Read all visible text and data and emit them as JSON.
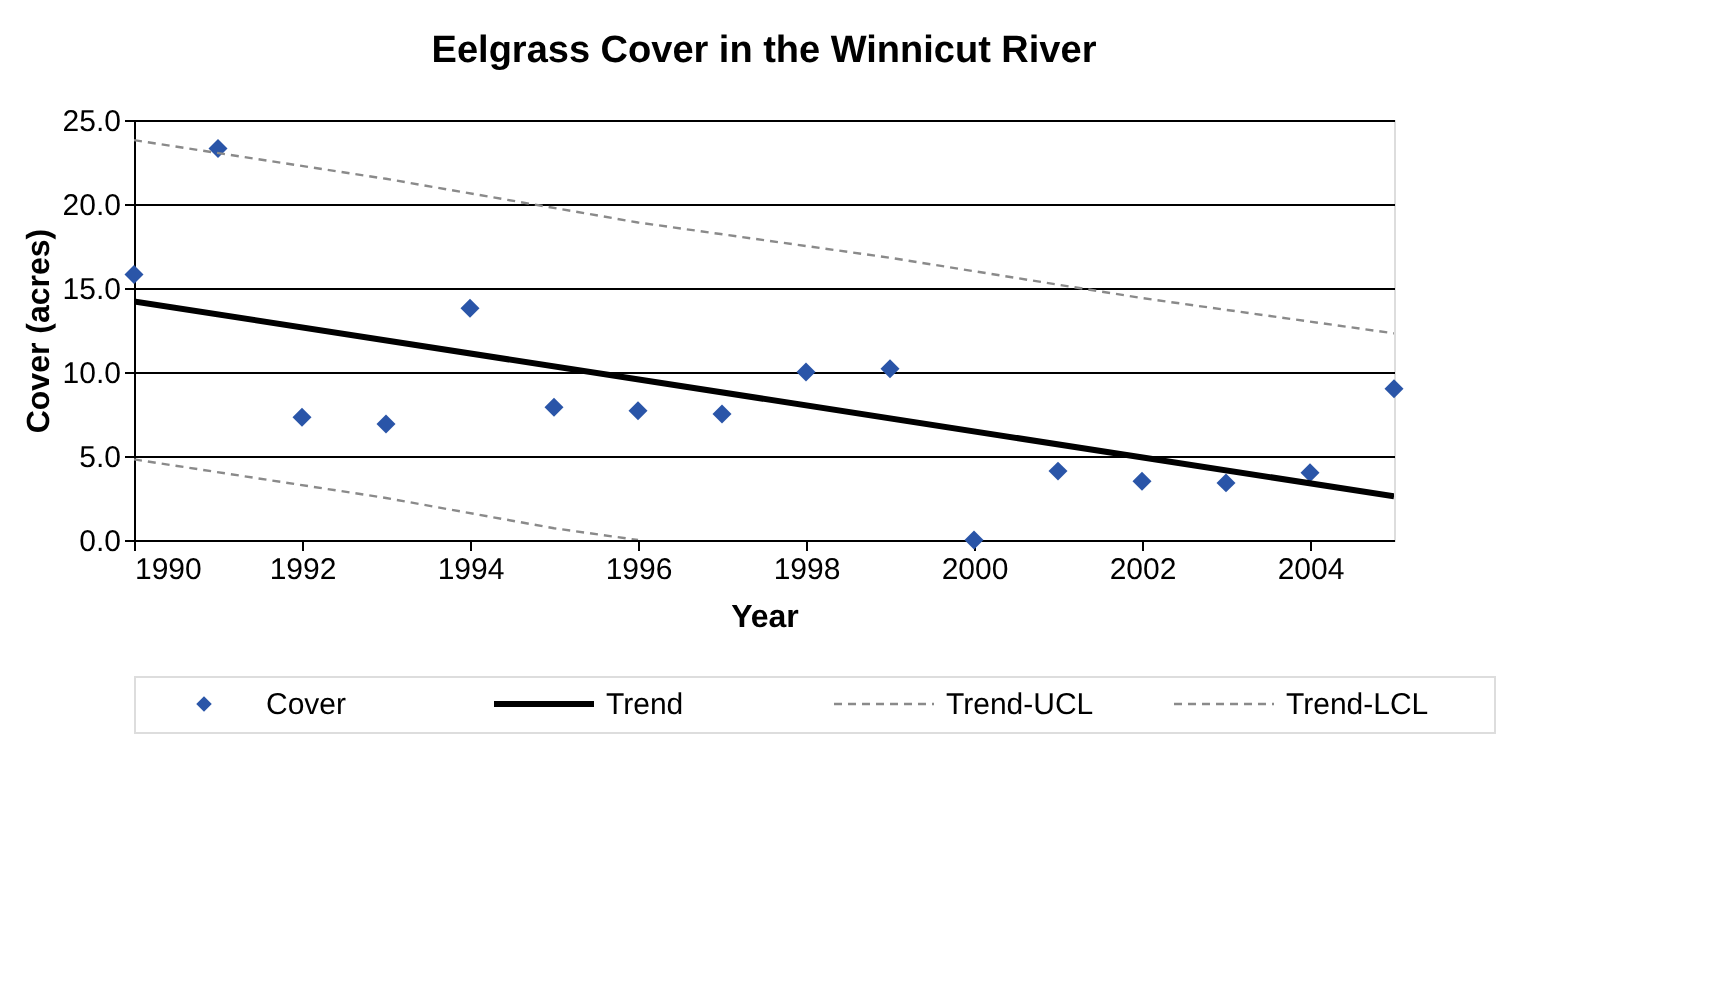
{
  "chart_data": {
    "type": "scatter",
    "title": "Eelgrass Cover in the Winnicut River",
    "xlabel": "Year",
    "ylabel": "Cover (acres)",
    "xlim": [
      1990,
      2005
    ],
    "xticks": [
      1990,
      1992,
      1994,
      1996,
      1998,
      2000,
      2002,
      2004
    ],
    "ylim": [
      0,
      25
    ],
    "yticks": [
      {
        "value": 0,
        "label": "0.0"
      },
      {
        "value": 5,
        "label": "5.0"
      },
      {
        "value": 10,
        "label": "10.0"
      },
      {
        "value": 15,
        "label": "15.0"
      },
      {
        "value": 20,
        "label": "20.0"
      },
      {
        "value": 25,
        "label": "25.0"
      }
    ],
    "grid": "y",
    "legend": "bottom",
    "series": [
      {
        "name": "Cover",
        "marker": "diamond",
        "color": "#2a55a8",
        "x": [
          1990,
          1991,
          1992,
          1993,
          1994,
          1995,
          1996,
          1997,
          1998,
          1999,
          2000,
          2001,
          2002,
          2003,
          2004,
          2005
        ],
        "values": [
          15.8,
          23.3,
          7.3,
          6.9,
          13.8,
          7.9,
          7.7,
          7.5,
          10.0,
          10.2,
          0.0,
          4.1,
          3.5,
          3.4,
          4.0,
          9.0
        ]
      },
      {
        "name": "Trend",
        "type": "line",
        "line_style": "solid",
        "color": "#000000",
        "x": [
          1990,
          2005
        ],
        "values": [
          14.2,
          2.6
        ]
      },
      {
        "name": "Trend-UCL",
        "type": "line",
        "line_style": "dashed",
        "color": "#8a8a8a",
        "x": [
          1990,
          1993,
          1996,
          1999,
          2002,
          2005
        ],
        "values": [
          23.8,
          21.5,
          18.9,
          16.8,
          14.4,
          12.3
        ]
      },
      {
        "name": "Trend-LCL",
        "type": "line",
        "line_style": "dashed",
        "color": "#8a8a8a",
        "x": [
          1990,
          1993,
          1995,
          1996
        ],
        "values": [
          4.8,
          2.5,
          0.7,
          0.0
        ]
      }
    ]
  }
}
